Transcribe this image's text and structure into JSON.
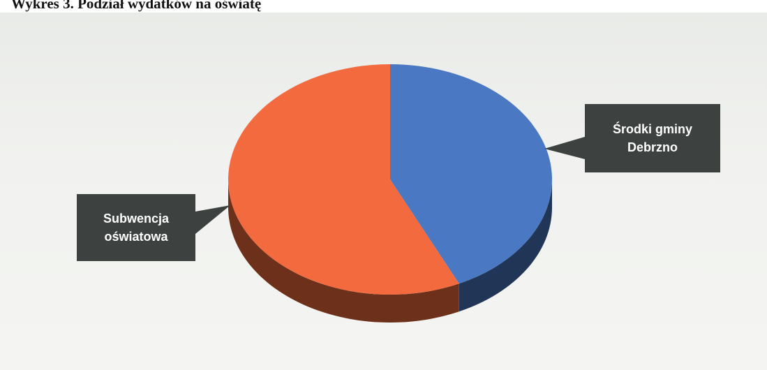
{
  "title": "Wykres 3. Podział wydatków na oświatę",
  "chart_data": {
    "type": "pie",
    "style": "3d",
    "slices": [
      {
        "label": "Środki gminy Debrzno",
        "value": 43,
        "color": "#4a78c2"
      },
      {
        "label": "Subwencja oświatowa",
        "value": 57,
        "color": "#f26a3d"
      }
    ],
    "callouts": [
      {
        "lines": [
          "Środki gminy",
          "Debrzno"
        ]
      },
      {
        "lines": [
          "Subwencja",
          "oświatowa"
        ]
      }
    ],
    "legend": "none"
  }
}
